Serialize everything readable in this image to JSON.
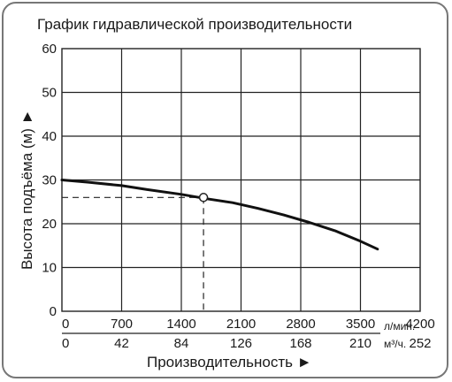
{
  "chart_data": {
    "type": "line",
    "title": "График гидравлической производительности",
    "xlabel": "Производительность ►",
    "ylabel": "Высота подъёма (м) ►",
    "x_unit_primary": "л/мин.",
    "x_unit_secondary": "м³/ч.",
    "xlim": [
      0,
      4200
    ],
    "ylim": [
      0,
      60
    ],
    "x_ticks_primary": [
      "0",
      "700",
      "1400",
      "2100",
      "2800",
      "3500",
      "4200"
    ],
    "x_ticks_secondary": [
      "0",
      "42",
      "84",
      "126",
      "168",
      "210",
      "252"
    ],
    "y_ticks": [
      "0",
      "10",
      "20",
      "30",
      "40",
      "50",
      "60"
    ],
    "grid": true,
    "series": [
      {
        "x": [
          0,
          300,
          700,
          1000,
          1400,
          1700,
          2000,
          2300,
          2600,
          2900,
          3200,
          3500,
          3700
        ],
        "y": [
          30,
          29.5,
          28.7,
          27.8,
          26.7,
          25.7,
          24.8,
          23.5,
          22.0,
          20.3,
          18.4,
          16.0,
          14.2
        ]
      }
    ],
    "marker": {
      "x": 1660,
      "y": 26
    },
    "grid_color": "#222222",
    "curve_color": "#111111"
  }
}
